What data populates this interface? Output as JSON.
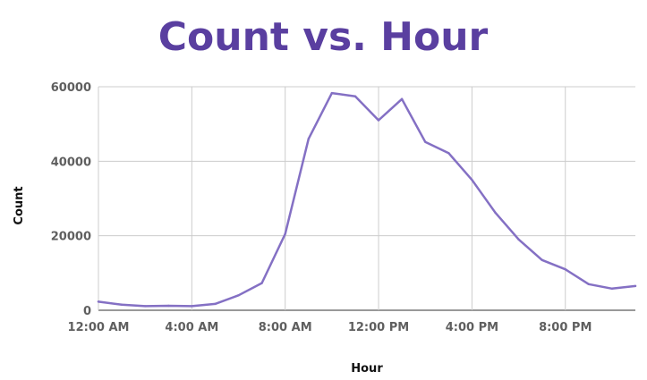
{
  "chart_data": {
    "type": "line",
    "title": "Count vs. Hour",
    "xlabel": "Hour",
    "ylabel": "Count",
    "ylim": [
      0,
      60000
    ],
    "y_ticks": [
      0,
      20000,
      40000,
      60000
    ],
    "y_tick_labels": [
      "0",
      "20000",
      "40000",
      "60000"
    ],
    "x_range": [
      0,
      23
    ],
    "x_ticks": [
      0,
      4,
      8,
      12,
      16,
      20
    ],
    "x_tick_labels": [
      "12:00 AM",
      "4:00 AM",
      "8:00 AM",
      "12:00 PM",
      "4:00 PM",
      "8:00 PM"
    ],
    "grid": true,
    "colors": {
      "line": "#8470c4",
      "title": "#5a3fa0",
      "grid": "#cccccc"
    },
    "series": [
      {
        "name": "Count",
        "x": [
          0,
          1,
          2,
          3,
          4,
          5,
          6,
          7,
          8,
          9,
          10,
          11,
          12,
          13,
          14,
          15,
          16,
          17,
          18,
          19,
          20,
          21,
          22,
          23
        ],
        "values": [
          2300,
          1500,
          1100,
          1200,
          1100,
          1700,
          4000,
          7300,
          20500,
          46000,
          58300,
          57400,
          51000,
          56700,
          45200,
          42200,
          35000,
          26200,
          19000,
          13500,
          11000,
          7000,
          5800,
          6500
        ]
      }
    ]
  }
}
